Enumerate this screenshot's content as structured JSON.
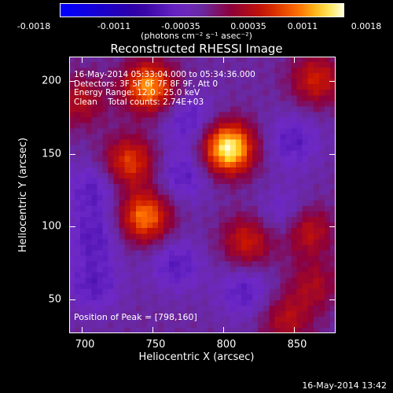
{
  "colorbar": {
    "ticks": [
      "-0.0018",
      "-0.0011",
      "-0.00035",
      "0.00035",
      "0.0011",
      "0.0018"
    ],
    "unit": "(photons cm⁻² s⁻¹ asec⁻²)",
    "range": [
      -0.0018,
      0.0018
    ]
  },
  "chart_data": {
    "type": "heatmap",
    "title": "Reconstructed RHESSI Image",
    "xlabel": "Heliocentric X (arcsec)",
    "ylabel": "Heliocentric Y (arcsec)",
    "xlim": [
      682,
      876
    ],
    "ylim": [
      25,
      227
    ],
    "x_ticks": [
      "700",
      "750",
      "800",
      "850"
    ],
    "y_ticks": [
      "50",
      "100",
      "150",
      "200"
    ],
    "sources": [
      {
        "x": 798,
        "y": 160,
        "peak": 1.0
      },
      {
        "x": 740,
        "y": 205,
        "peak": 0.75
      },
      {
        "x": 737,
        "y": 110,
        "peak": 0.7
      },
      {
        "x": 726,
        "y": 150,
        "peak": 0.55
      },
      {
        "x": 812,
        "y": 92,
        "peak": 0.45
      },
      {
        "x": 855,
        "y": 100,
        "peak": 0.45
      },
      {
        "x": 862,
        "y": 210,
        "peak": 0.45
      },
      {
        "x": 690,
        "y": 195,
        "peak": 0.35
      },
      {
        "x": 840,
        "y": 35,
        "peak": 0.35
      },
      {
        "x": 860,
        "y": 60,
        "peak": 0.3
      }
    ],
    "annotation_lines": [
      "16-May-2014 05:33:04.000 to 05:34:36.000",
      "Detectors: 3F 5F 6F 7F 8F 9F, Att 0",
      "Energy Range: 12.0 - 25.0 keV",
      "Clean    Total counts: 2.74E+03"
    ],
    "peak_label": "Position of Peak = [798,160]"
  },
  "footer": "16-May-2014 13:42"
}
